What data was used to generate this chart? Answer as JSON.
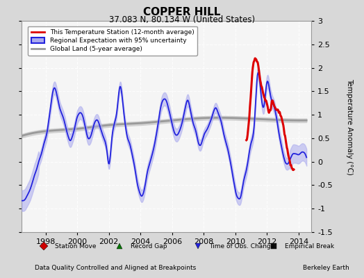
{
  "title": "COPPER HILL",
  "subtitle": "37.083 N, 80.134 W (United States)",
  "ylabel": "Temperature Anomaly (°C)",
  "xlabel_bottom_left": "Data Quality Controlled and Aligned at Breakpoints",
  "xlabel_bottom_right": "Berkeley Earth",
  "ylim": [
    -1.5,
    3.0
  ],
  "xlim_start": 1996.5,
  "xlim_end": 2014.8,
  "xticks": [
    1998,
    2000,
    2002,
    2004,
    2006,
    2008,
    2010,
    2012,
    2014
  ],
  "yticks": [
    -1.5,
    -1.0,
    -0.5,
    0.0,
    0.5,
    1.0,
    1.5,
    2.0,
    2.5,
    3.0
  ],
  "fig_bg_color": "#d8d8d8",
  "plot_bg_color": "#f5f5f5",
  "grid_color": "#ffffff",
  "blue_line_color": "#2222dd",
  "blue_fill_color": "#aaaaee",
  "red_line_color": "#dd0000",
  "gray_line_color": "#999999",
  "gray_fill_color": "#cccccc",
  "legend1_label": "This Temperature Station (12-month average)",
  "legend2_label": "Regional Expectation with 95% uncertainty",
  "legend3_label": "Global Land (5-year average)",
  "bottom_legend": [
    {
      "marker": "D",
      "color": "#cc0000",
      "label": "Station Move"
    },
    {
      "marker": "^",
      "color": "#007700",
      "label": "Record Gap"
    },
    {
      "marker": "v",
      "color": "#2222dd",
      "label": "Time of Obs. Change"
    },
    {
      "marker": "s",
      "color": "#111111",
      "label": "Empirical Break"
    }
  ],
  "blue_x": [
    1996.5,
    1997.0,
    1997.3,
    1997.6,
    1998.0,
    1998.3,
    1998.5,
    1998.8,
    1999.0,
    1999.3,
    1999.6,
    1999.9,
    2000.2,
    2000.5,
    2000.7,
    2001.0,
    2001.3,
    2001.6,
    2001.9,
    2002.0,
    2002.2,
    2002.5,
    2002.7,
    2002.9,
    2003.1,
    2003.3,
    2003.6,
    2003.9,
    2004.2,
    2004.4,
    2004.7,
    2005.0,
    2005.2,
    2005.5,
    2005.8,
    2006.0,
    2006.3,
    2006.5,
    2006.8,
    2007.0,
    2007.2,
    2007.5,
    2007.8,
    2008.0,
    2008.3,
    2008.5,
    2008.8,
    2009.0,
    2009.2,
    2009.5,
    2009.8,
    2010.0,
    2010.3,
    2010.5,
    2010.8,
    2011.0,
    2011.2,
    2011.4,
    2011.6,
    2011.8,
    2012.0,
    2012.2,
    2012.5,
    2012.8,
    2013.0,
    2013.3,
    2013.6,
    2013.9,
    2014.2,
    2014.5
  ],
  "blue_y": [
    -0.85,
    -0.6,
    -0.3,
    0.05,
    0.5,
    1.1,
    1.55,
    1.3,
    1.05,
    0.7,
    0.45,
    0.8,
    1.05,
    0.75,
    0.5,
    0.7,
    0.9,
    0.6,
    0.2,
    -0.05,
    0.5,
    1.05,
    1.6,
    1.2,
    0.65,
    0.4,
    -0.05,
    -0.6,
    -0.65,
    -0.3,
    0.1,
    0.55,
    1.0,
    1.35,
    1.1,
    0.8,
    0.55,
    0.7,
    1.1,
    1.3,
    1.0,
    0.65,
    0.35,
    0.55,
    0.75,
    0.95,
    1.15,
    0.95,
    0.7,
    0.3,
    -0.2,
    -0.6,
    -0.75,
    -0.45,
    0.0,
    0.4,
    0.8,
    1.85,
    1.55,
    1.2,
    1.7,
    1.45,
    1.1,
    0.55,
    0.2,
    -0.05,
    0.15,
    0.15,
    0.2,
    0.1
  ],
  "red_x": [
    2010.7,
    2011.0,
    2011.15,
    2011.3,
    2011.45,
    2011.6,
    2011.75,
    2011.9,
    2012.0,
    2012.15,
    2012.3,
    2012.5,
    2012.65,
    2012.8,
    2013.55,
    2013.7
  ],
  "red_y": [
    0.45,
    1.55,
    2.1,
    2.2,
    2.05,
    1.7,
    1.45,
    1.3,
    1.2,
    1.05,
    1.25,
    1.15,
    1.1,
    1.05,
    -0.1,
    -0.15
  ],
  "gray_x": [
    1996.5,
    1998.0,
    2000.0,
    2002.0,
    2004.0,
    2006.0,
    2008.0,
    2010.0,
    2012.0,
    2014.5
  ],
  "gray_y": [
    0.55,
    0.65,
    0.7,
    0.78,
    0.82,
    0.88,
    0.93,
    0.93,
    0.9,
    0.88
  ]
}
